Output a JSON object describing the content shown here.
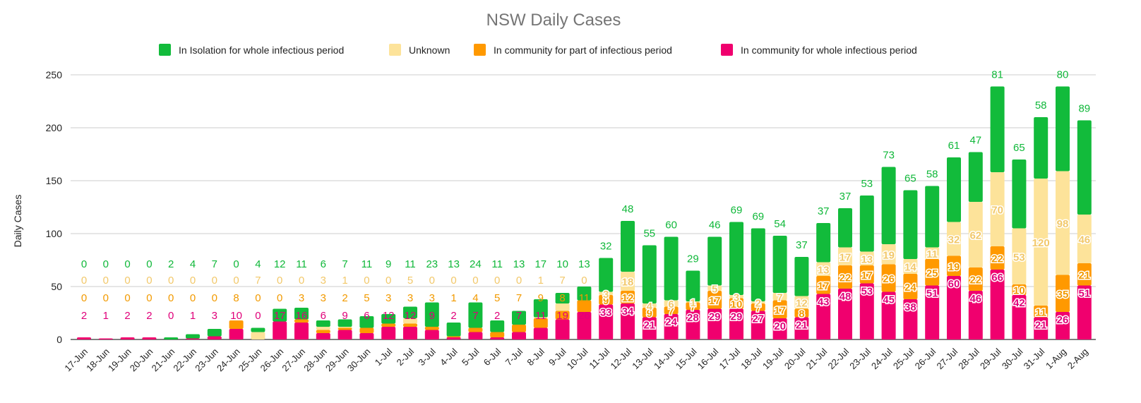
{
  "chart_data": {
    "type": "bar",
    "stacked": true,
    "title": "NSW Daily Cases",
    "xlabel": "",
    "ylabel": "Daily Cases",
    "ylim": [
      0,
      250
    ],
    "yticks": [
      0,
      50,
      100,
      150,
      200,
      250
    ],
    "grid": true,
    "legend_position": "top",
    "categories": [
      "17-Jun",
      "18-Jun",
      "19-Jun",
      "20-Jun",
      "21-Jun",
      "22-Jun",
      "23-Jun",
      "24-Jun",
      "25-Jun",
      "26-Jun",
      "27-Jun",
      "28-Jun",
      "29-Jun",
      "30-Jun",
      "1-Jul",
      "2-Jul",
      "3-Jul",
      "4-Jul",
      "5-Jul",
      "6-Jul",
      "7-Jul",
      "8-Jul",
      "9-Jul",
      "10-Jul",
      "11-Jul",
      "12-Jul",
      "13-Jul",
      "14-Jul",
      "15-Jul",
      "16-Jul",
      "17-Jul",
      "18-Jul",
      "19-Jul",
      "20-Jul",
      "21-Jul",
      "22-Jul",
      "23-Jul",
      "24-Jul",
      "25-Jul",
      "26-Jul",
      "27-Jul",
      "28-Jul",
      "29-Jul",
      "30-Jul",
      "31-Jul",
      "1-Aug",
      "2-Aug"
    ],
    "series": [
      {
        "name": "In community for whole infectious period",
        "color": "#f0006e",
        "values": [
          2,
          1,
          2,
          2,
          0,
          1,
          3,
          10,
          0,
          17,
          16,
          6,
          9,
          6,
          12,
          12,
          9,
          2,
          7,
          2,
          7,
          11,
          19,
          26,
          33,
          34,
          21,
          24,
          28,
          29,
          29,
          27,
          20,
          21,
          43,
          48,
          53,
          45,
          38,
          51,
          60,
          46,
          66,
          42,
          21,
          26,
          51
        ]
      },
      {
        "name": "In community for part of infectious period",
        "color": "#ff9900",
        "values": [
          0,
          0,
          0,
          0,
          0,
          0,
          0,
          8,
          0,
          0,
          3,
          3,
          2,
          5,
          3,
          3,
          3,
          1,
          4,
          5,
          7,
          9,
          8,
          11,
          9,
          12,
          9,
          7,
          7,
          17,
          10,
          7,
          17,
          8,
          17,
          22,
          17,
          26,
          24,
          25,
          19,
          22,
          22,
          10,
          11,
          35,
          21
        ]
      },
      {
        "name": "Unknown",
        "color": "#fde39a",
        "values": [
          0,
          0,
          0,
          0,
          0,
          0,
          0,
          0,
          7,
          0,
          0,
          3,
          1,
          0,
          0,
          5,
          0,
          0,
          0,
          0,
          0,
          1,
          7,
          0,
          3,
          18,
          4,
          6,
          1,
          5,
          3,
          2,
          7,
          12,
          13,
          17,
          13,
          19,
          14,
          11,
          32,
          62,
          70,
          53,
          120,
          98,
          46
        ]
      },
      {
        "name": "In Isolation for whole infectious period",
        "color": "#12bb3b",
        "values": [
          0,
          0,
          0,
          0,
          2,
          4,
          7,
          0,
          4,
          12,
          11,
          6,
          7,
          11,
          9,
          11,
          23,
          13,
          24,
          11,
          13,
          17,
          10,
          13,
          32,
          48,
          55,
          60,
          29,
          46,
          69,
          69,
          54,
          37,
          37,
          37,
          53,
          73,
          65,
          58,
          61,
          47,
          81,
          65,
          58,
          80,
          89
        ]
      }
    ]
  }
}
